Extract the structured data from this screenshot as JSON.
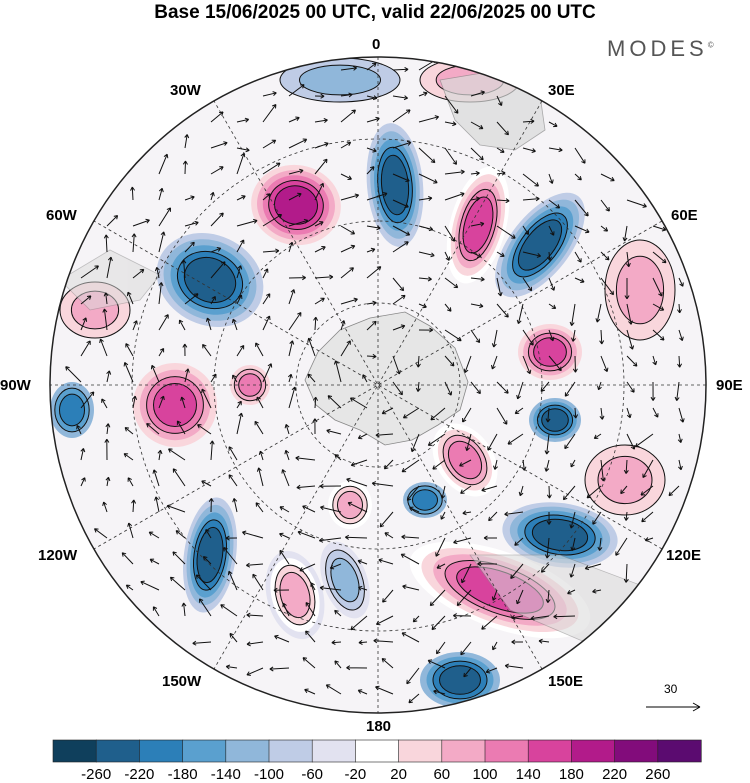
{
  "title": "Base 15/06/2025 00 UTC, valid 22/06/2025 00 UTC",
  "brand": "MODES",
  "brand_mark": "©",
  "longitude_labels": {
    "n0": "0",
    "e30": "30E",
    "e60": "60E",
    "e90": "90E",
    "e120": "120E",
    "e150": "150E",
    "s180": "180",
    "w150": "150W",
    "w120": "120W",
    "w90": "90W",
    "w60": "60W",
    "w30": "30W"
  },
  "vector_reference": "30",
  "colorbar": {
    "ticks": [
      "-260",
      "-220",
      "-180",
      "-140",
      "-100",
      "-60",
      "-20",
      "20",
      "60",
      "100",
      "140",
      "180",
      "220",
      "260"
    ],
    "colors": [
      "#0f3f5c",
      "#1f5f8c",
      "#2c7fb8",
      "#5aa0cf",
      "#90b7da",
      "#bfcce6",
      "#e2e2f0",
      "#ffffff",
      "#f9d6dc",
      "#f3aac6",
      "#eb7bb2",
      "#d8439d",
      "#b21b8a",
      "#820c7b",
      "#5b0b70"
    ]
  }
}
